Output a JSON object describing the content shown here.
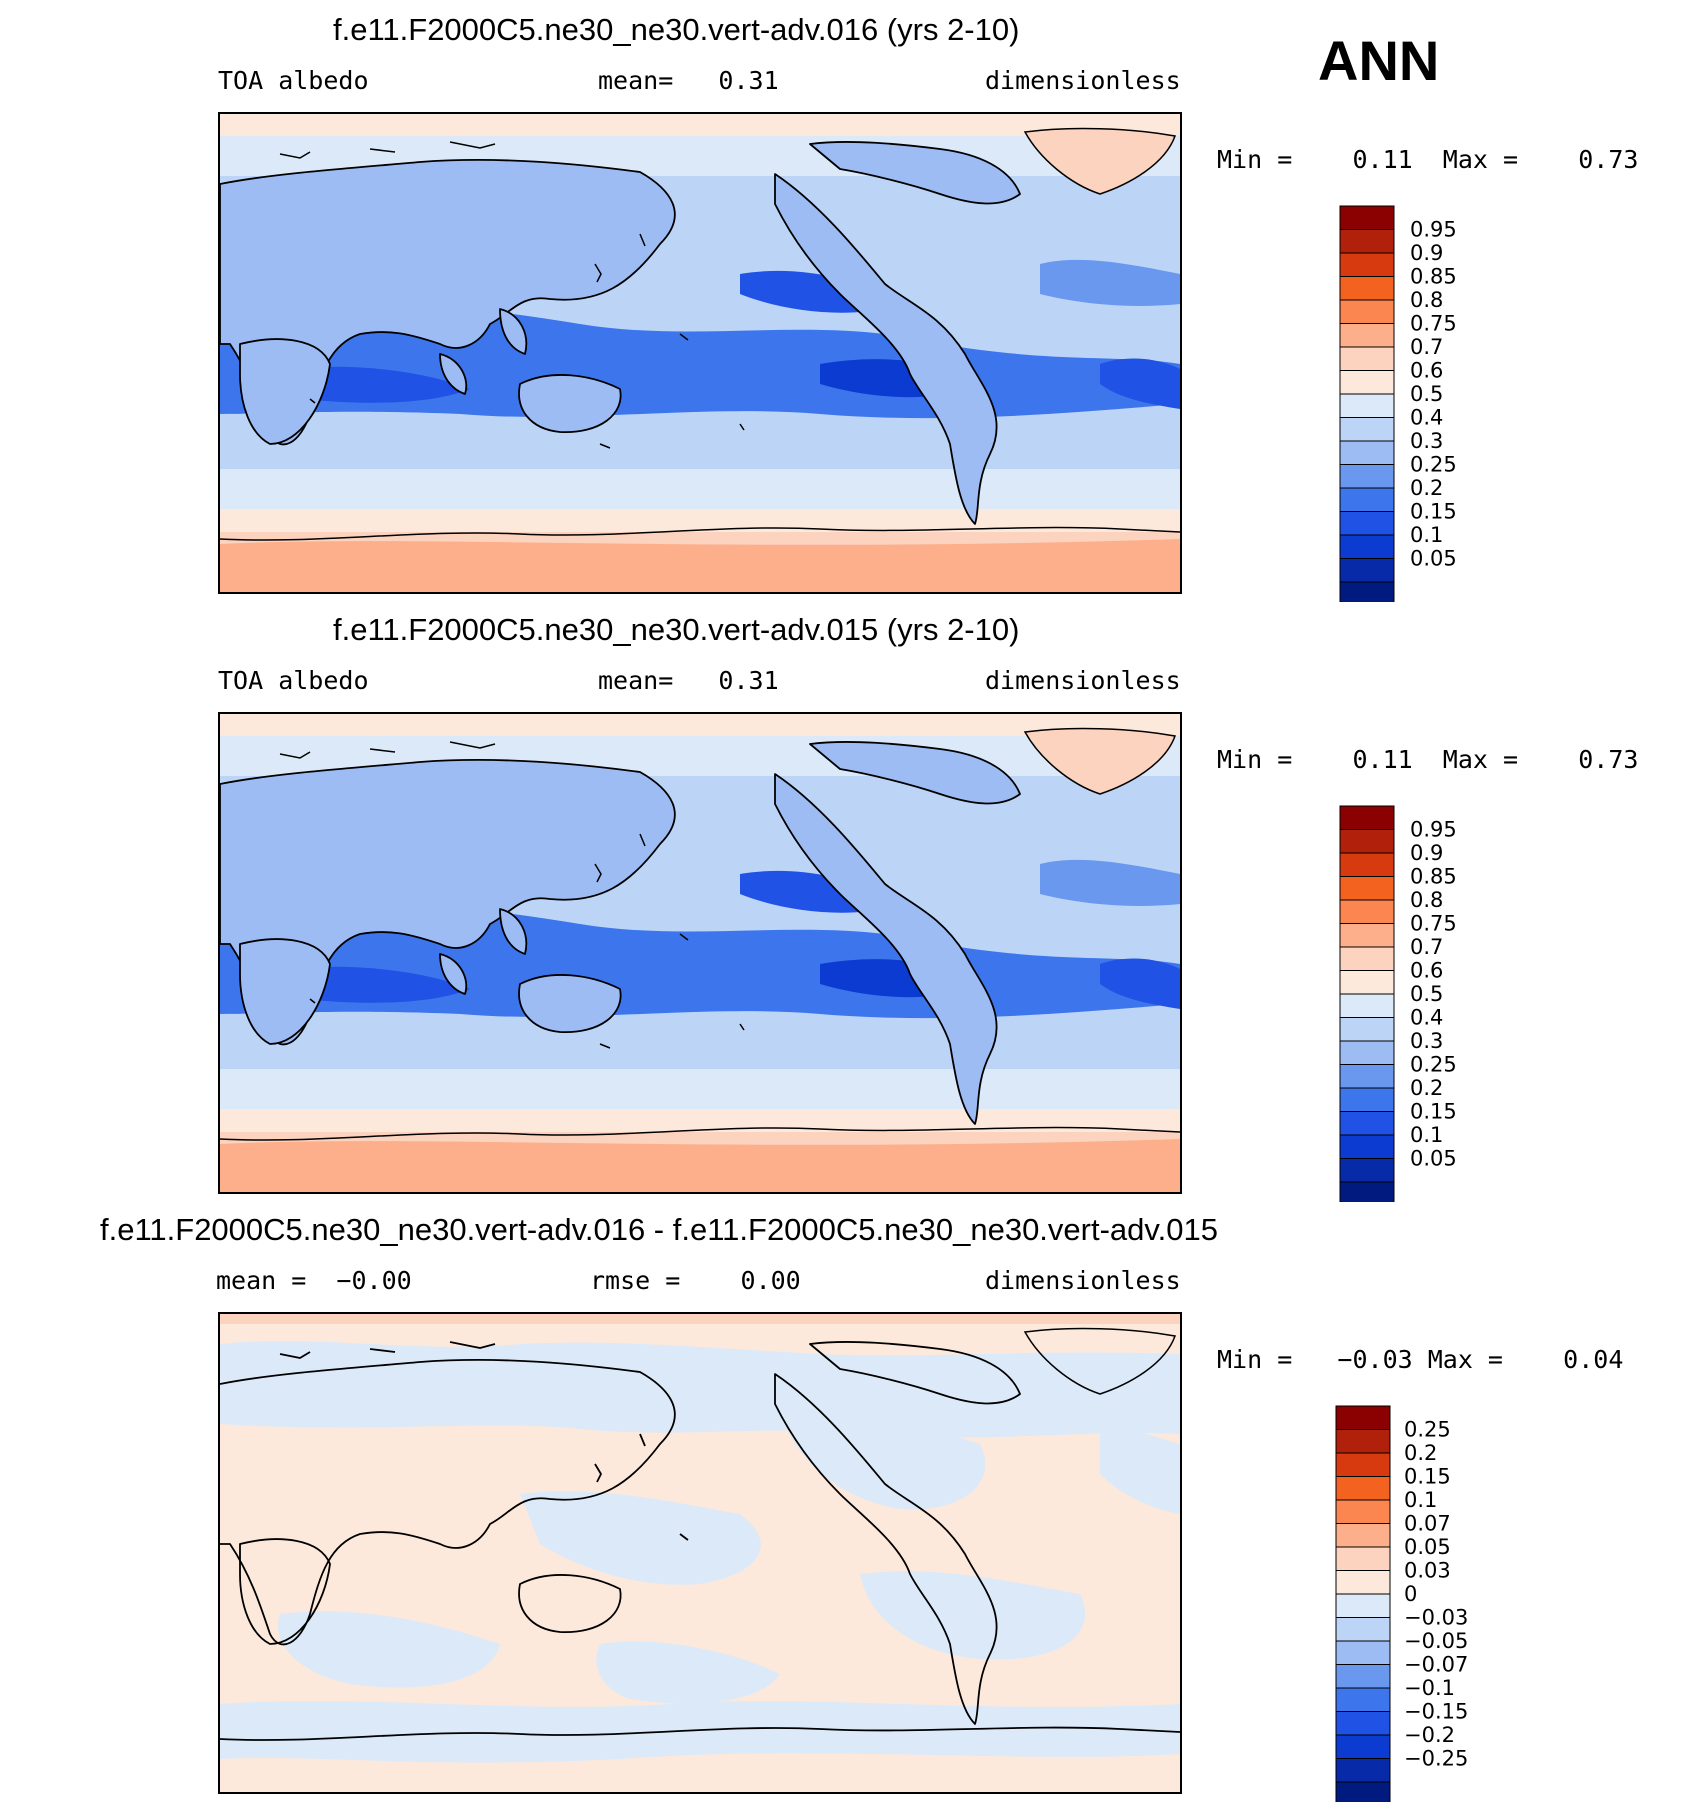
{
  "season": "ANN",
  "panels": [
    {
      "title": "f.e11.F2000C5.ne30_ne30.vert-adv.016 (yrs 2-10)",
      "left_label": "TOA albedo",
      "center_label": "mean=   0.31",
      "right_label": "dimensionless",
      "minmax": "Min =    0.11  Max =    0.73",
      "colorbar": {
        "colors": [
          "#8b0000",
          "#b0200a",
          "#d73a0f",
          "#f4621f",
          "#fb8650",
          "#fdae8a",
          "#fbd3bf",
          "#fde9dc",
          "#dbe9f8",
          "#bcd4f6",
          "#9dbcf4",
          "#6a98ef",
          "#3d76ec",
          "#1f52e5",
          "#0b3bd0",
          "#072aa8",
          "#001a80"
        ],
        "labels": [
          "0.95",
          "0.9",
          "0.85",
          "0.8",
          "0.75",
          "0.7",
          "0.6",
          "0.5",
          "0.4",
          "0.3",
          "0.25",
          "0.2",
          "0.15",
          "0.1",
          "0.05"
        ]
      }
    },
    {
      "title": "f.e11.F2000C5.ne30_ne30.vert-adv.015 (yrs 2-10)",
      "left_label": "TOA albedo",
      "center_label": "mean=   0.31",
      "right_label": "dimensionless",
      "minmax": "Min =    0.11  Max =    0.73",
      "colorbar": {
        "colors": [
          "#8b0000",
          "#b0200a",
          "#d73a0f",
          "#f4621f",
          "#fb8650",
          "#fdae8a",
          "#fbd3bf",
          "#fde9dc",
          "#dbe9f8",
          "#bcd4f6",
          "#9dbcf4",
          "#6a98ef",
          "#3d76ec",
          "#1f52e5",
          "#0b3bd0",
          "#072aa8",
          "#001a80"
        ],
        "labels": [
          "0.95",
          "0.9",
          "0.85",
          "0.8",
          "0.75",
          "0.7",
          "0.6",
          "0.5",
          "0.4",
          "0.3",
          "0.25",
          "0.2",
          "0.15",
          "0.1",
          "0.05"
        ]
      }
    },
    {
      "title": "f.e11.F2000C5.ne30_ne30.vert-adv.016 - f.e11.F2000C5.ne30_ne30.vert-adv.015",
      "left_label": "mean =  −0.00",
      "center_label": "rmse =    0.00",
      "right_label": "dimensionless",
      "minmax": "Min =   −0.03 Max =    0.04",
      "colorbar": {
        "colors": [
          "#8b0000",
          "#b0200a",
          "#d73a0f",
          "#f4621f",
          "#fb8650",
          "#fdae8a",
          "#fbd3bf",
          "#fde9dc",
          "#dbe9f8",
          "#bcd4f6",
          "#9dbcf4",
          "#6a98ef",
          "#3d76ec",
          "#1f52e5",
          "#0b3bd0",
          "#072aa8",
          "#001a80"
        ],
        "labels": [
          "0.25",
          "0.2",
          "0.15",
          "0.1",
          "0.07",
          "0.05",
          "0.03",
          "0",
          "−0.03",
          "−0.05",
          "−0.07",
          "−0.1",
          "−0.15",
          "−0.2",
          "−0.25"
        ]
      }
    }
  ]
}
